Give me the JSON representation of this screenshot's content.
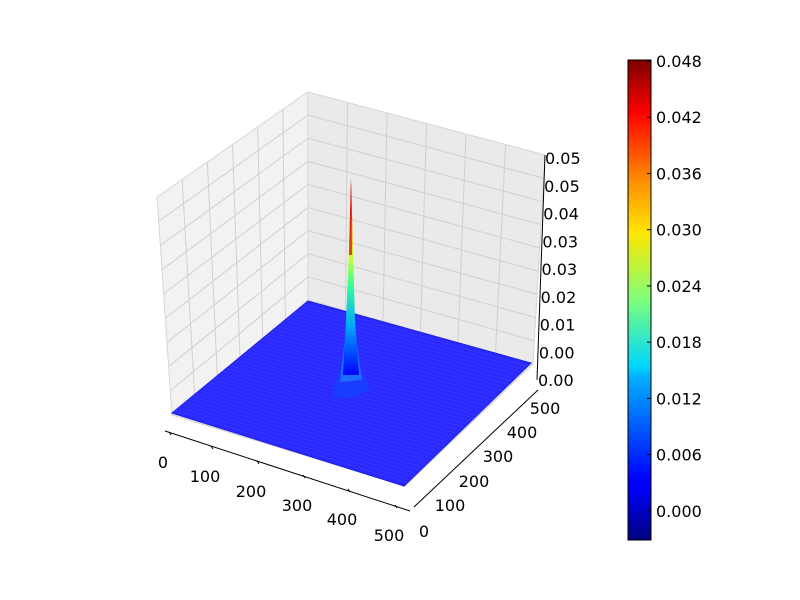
{
  "chart_data": {
    "type": "surface",
    "x_ticks": [
      "0",
      "100",
      "200",
      "300",
      "400",
      "500"
    ],
    "y_ticks": [
      "0",
      "100",
      "200",
      "300",
      "400",
      "500"
    ],
    "z_ticks": [
      "0.00",
      "0.00",
      "0.01",
      "0.02",
      "0.03",
      "0.03",
      "0.04",
      "0.05",
      "0.05"
    ],
    "xlim": [
      0,
      500
    ],
    "ylim": [
      0,
      500
    ],
    "zlim": [
      0,
      0.05
    ],
    "grid": true,
    "surface": {
      "baseline": 0.0,
      "peak_value": 0.048,
      "peak_position": [
        250,
        250
      ],
      "description_values": [
        0.0,
        0.006,
        0.012,
        0.018,
        0.024,
        0.03,
        0.036,
        0.042,
        0.048
      ]
    },
    "colorbar": {
      "colormap": "jet",
      "range": [
        -0.003,
        0.048
      ],
      "ticks": [
        "0.000",
        "0.006",
        "0.012",
        "0.018",
        "0.024",
        "0.030",
        "0.036",
        "0.042",
        "0.048"
      ]
    }
  }
}
